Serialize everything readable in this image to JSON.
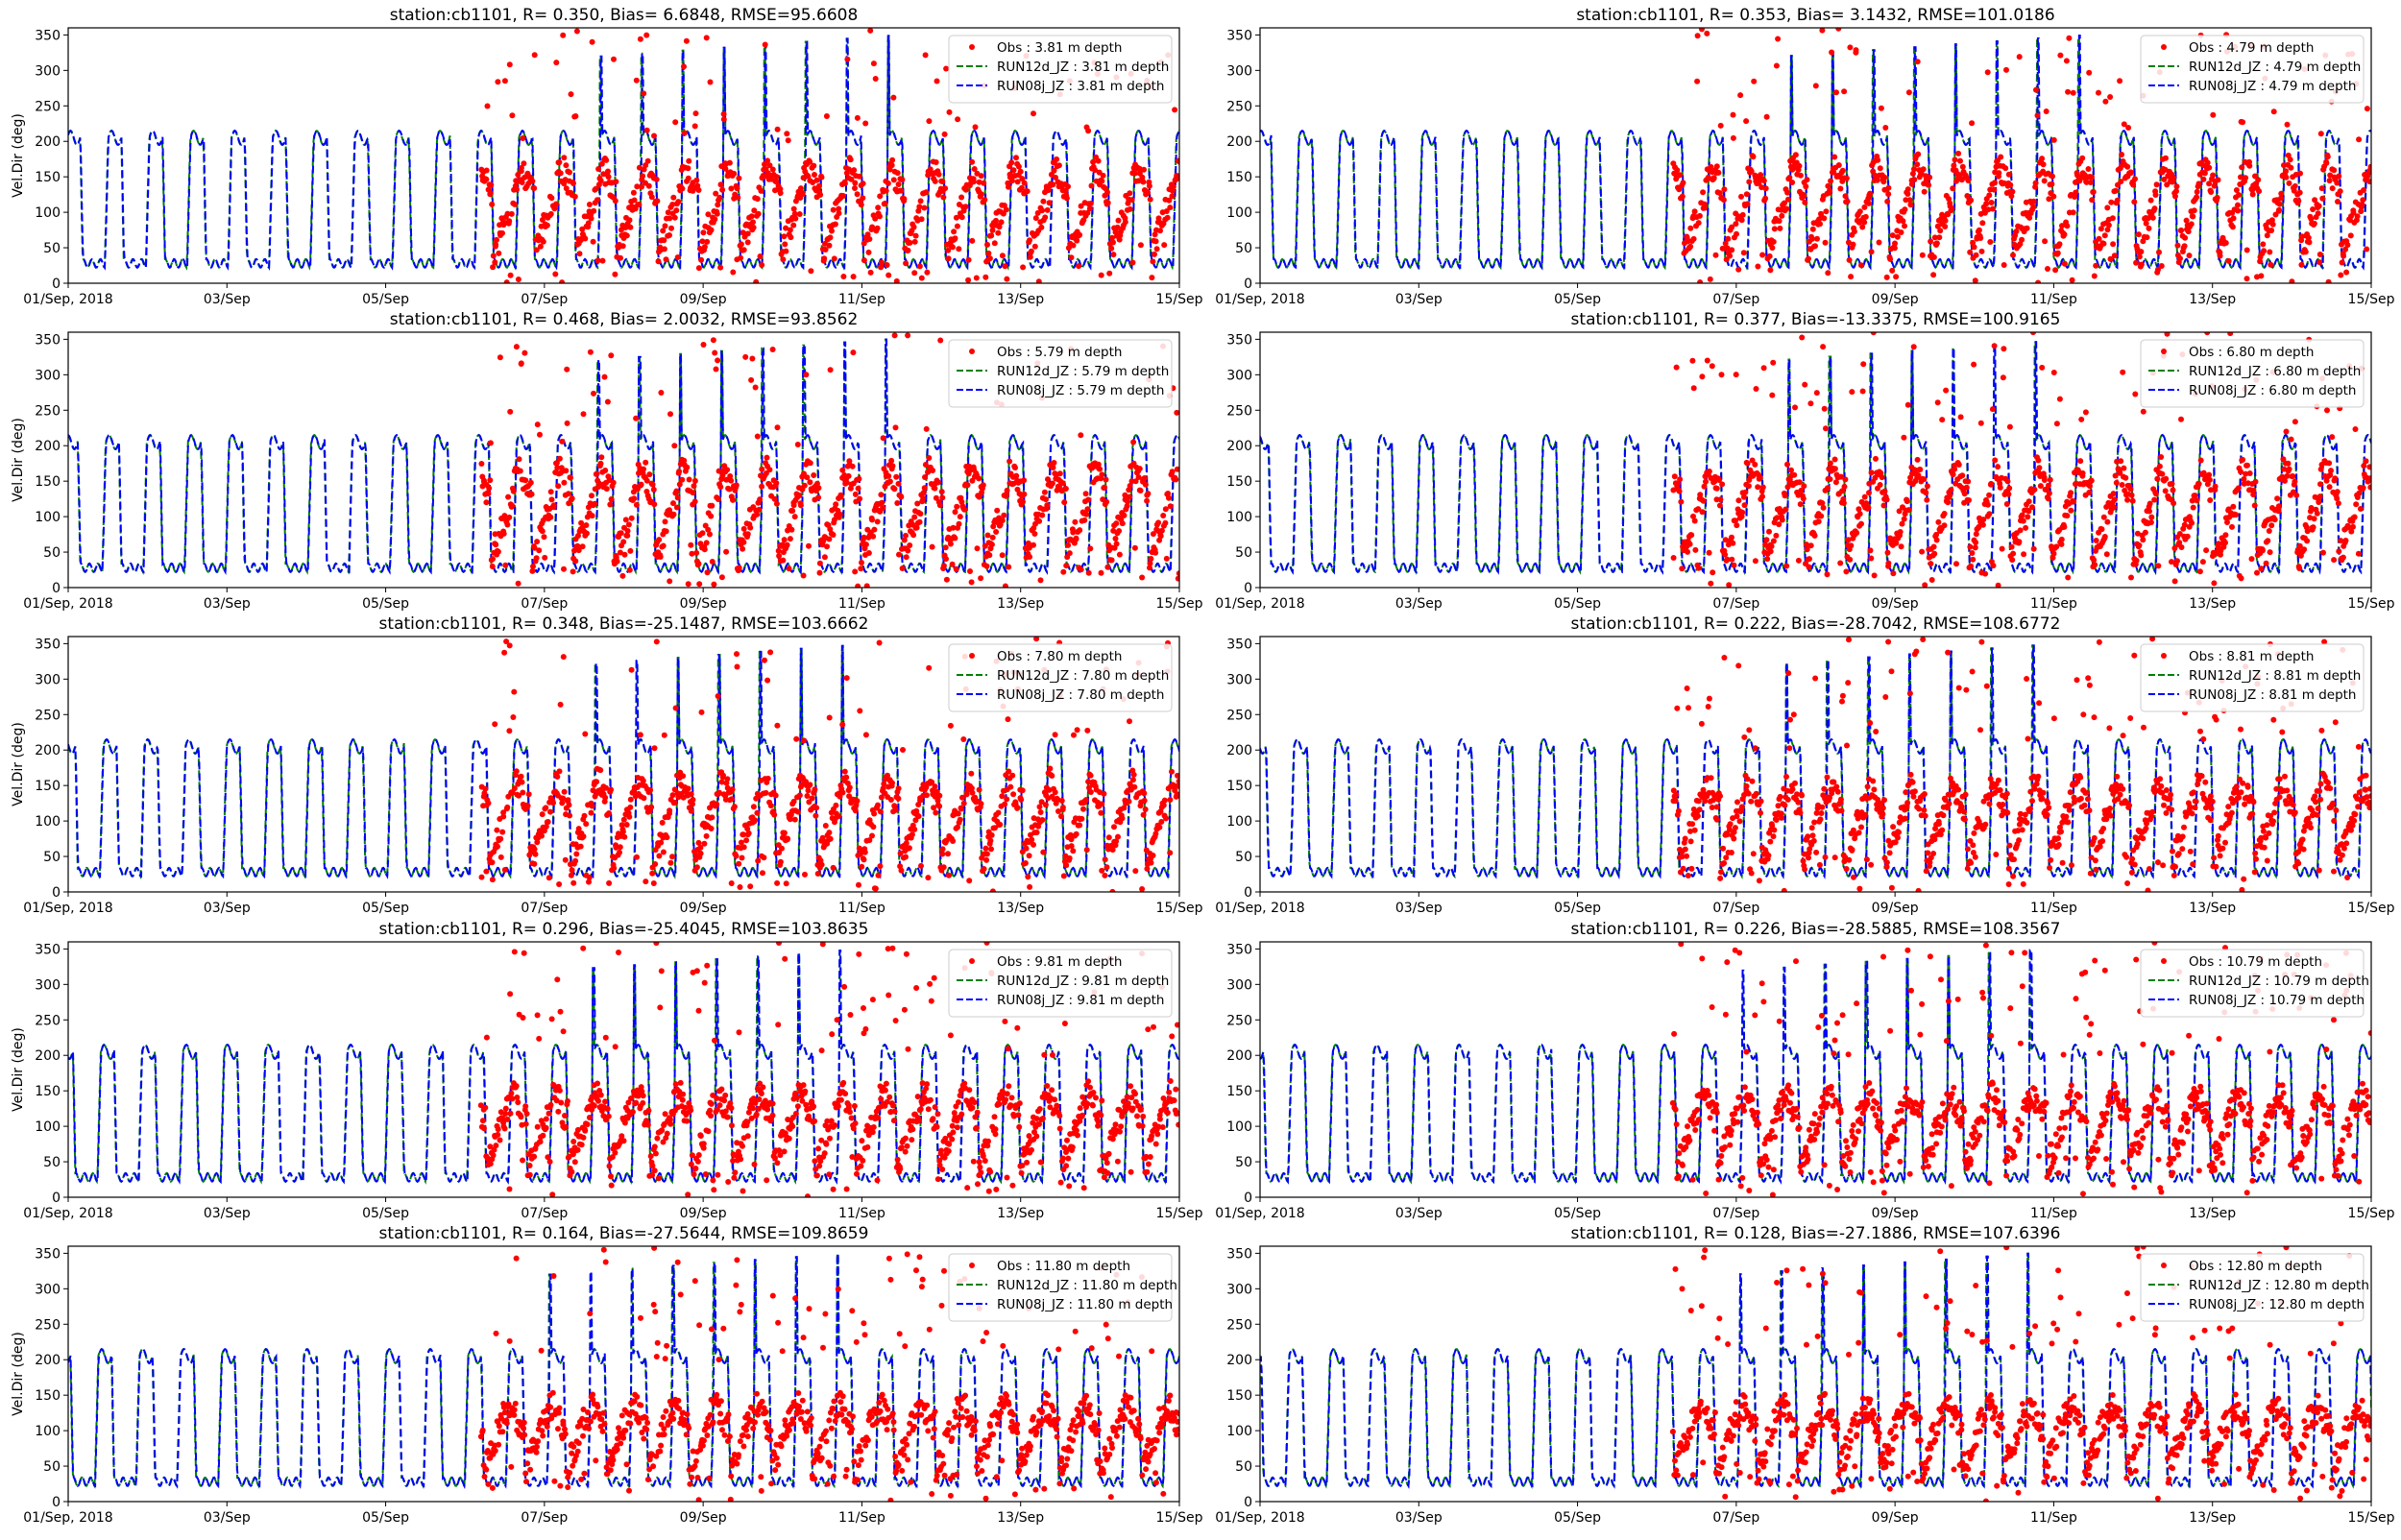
{
  "figure": {
    "panels": 10,
    "layout": "5 rows x 2 columns"
  },
  "colors": {
    "obs": "#ff0000",
    "run12d": "#008000",
    "run08j": "#0000ff",
    "axis": "#000000"
  },
  "chart_data": [
    {
      "type": "scatter",
      "title": "station:cb1101, R= 0.350, Bias= 6.6848, RMSE=95.6608",
      "ylabel": "Vel.Dir (deg)",
      "xlabel": "",
      "xlim": [
        0,
        14
      ],
      "ylim": [
        0,
        360
      ],
      "xtick_labels": [
        "01/Sep, 2018",
        "03/Sep",
        "05/Sep",
        "07/Sep",
        "09/Sep",
        "11/Sep",
        "13/Sep",
        "15/Sep"
      ],
      "ytick_labels": [
        "0",
        "50",
        "100",
        "150",
        "200",
        "250",
        "300",
        "350"
      ],
      "legend_position": "upper-right",
      "legend": [
        "Obs : 3.81 m depth",
        "RUN12d_JZ : 3.81 m depth",
        "RUN08j_JZ : 3.81 m depth"
      ],
      "obs_start_day": 5.2,
      "obs_center": 145,
      "model_depth_m": 3.81
    },
    {
      "type": "scatter",
      "title": "station:cb1101, R= 0.353, Bias= 3.1432, RMSE=101.0186",
      "ylabel": "",
      "xlabel": "",
      "xlim": [
        0,
        14
      ],
      "ylim": [
        0,
        360
      ],
      "xtick_labels": [
        "01/Sep, 2018",
        "03/Sep",
        "05/Sep",
        "07/Sep",
        "09/Sep",
        "11/Sep",
        "13/Sep",
        "15/Sep"
      ],
      "ytick_labels": [
        "0",
        "50",
        "100",
        "150",
        "200",
        "250",
        "300",
        "350"
      ],
      "legend_position": "upper-right",
      "legend": [
        "Obs : 4.79 m depth",
        "RUN12d_JZ : 4.79 m depth",
        "RUN08j_JZ : 4.79 m depth"
      ],
      "obs_start_day": 5.2,
      "obs_center": 148,
      "model_depth_m": 4.79
    },
    {
      "type": "scatter",
      "title": "station:cb1101, R= 0.468, Bias= 2.0032, RMSE=93.8562",
      "ylabel": "Vel.Dir (deg)",
      "xlabel": "",
      "xlim": [
        0,
        14
      ],
      "ylim": [
        0,
        360
      ],
      "xtick_labels": [
        "01/Sep, 2018",
        "03/Sep",
        "05/Sep",
        "07/Sep",
        "09/Sep",
        "11/Sep",
        "13/Sep",
        "15/Sep"
      ],
      "ytick_labels": [
        "0",
        "50",
        "100",
        "150",
        "200",
        "250",
        "300",
        "350"
      ],
      "legend_position": "upper-right",
      "legend": [
        "Obs : 5.79 m depth",
        "RUN12d_JZ : 5.79 m depth",
        "RUN08j_JZ : 5.79 m depth"
      ],
      "obs_start_day": 5.2,
      "obs_center": 150,
      "model_depth_m": 5.79
    },
    {
      "type": "scatter",
      "title": "station:cb1101, R= 0.377, Bias=-13.3375, RMSE=100.9165",
      "ylabel": "",
      "xlabel": "",
      "xlim": [
        0,
        14
      ],
      "ylim": [
        0,
        360
      ],
      "xtick_labels": [
        "01/Sep, 2018",
        "03/Sep",
        "05/Sep",
        "07/Sep",
        "09/Sep",
        "11/Sep",
        "13/Sep",
        "15/Sep"
      ],
      "ytick_labels": [
        "0",
        "50",
        "100",
        "150",
        "200",
        "250",
        "300",
        "350"
      ],
      "legend_position": "upper-right",
      "legend": [
        "Obs : 6.80 m depth",
        "RUN12d_JZ : 6.80 m depth",
        "RUN08j_JZ : 6.80 m depth"
      ],
      "obs_start_day": 5.2,
      "obs_center": 150,
      "model_depth_m": 6.8
    },
    {
      "type": "scatter",
      "title": "station:cb1101, R= 0.348, Bias=-25.1487, RMSE=103.6662",
      "ylabel": "Vel.Dir (deg)",
      "xlabel": "",
      "xlim": [
        0,
        14
      ],
      "ylim": [
        0,
        360
      ],
      "xtick_labels": [
        "01/Sep, 2018",
        "03/Sep",
        "05/Sep",
        "07/Sep",
        "09/Sep",
        "11/Sep",
        "13/Sep",
        "15/Sep"
      ],
      "ytick_labels": [
        "0",
        "50",
        "100",
        "150",
        "200",
        "250",
        "300",
        "350"
      ],
      "legend_position": "upper-right",
      "legend": [
        "Obs : 7.80 m depth",
        "RUN12d_JZ : 7.80 m depth",
        "RUN08j_JZ : 7.80 m depth"
      ],
      "obs_start_day": 5.2,
      "obs_center": 140,
      "model_depth_m": 7.8
    },
    {
      "type": "scatter",
      "title": "station:cb1101, R= 0.222, Bias=-28.7042, RMSE=108.6772",
      "ylabel": "",
      "xlabel": "",
      "xlim": [
        0,
        14
      ],
      "ylim": [
        0,
        360
      ],
      "xtick_labels": [
        "01/Sep, 2018",
        "03/Sep",
        "05/Sep",
        "07/Sep",
        "09/Sep",
        "11/Sep",
        "13/Sep",
        "15/Sep"
      ],
      "ytick_labels": [
        "0",
        "50",
        "100",
        "150",
        "200",
        "250",
        "300",
        "350"
      ],
      "legend_position": "upper-right",
      "legend": [
        "Obs : 8.81 m depth",
        "RUN12d_JZ : 8.81 m depth",
        "RUN08j_JZ : 8.81 m depth"
      ],
      "obs_start_day": 5.2,
      "obs_center": 135,
      "model_depth_m": 8.81
    },
    {
      "type": "scatter",
      "title": "station:cb1101, R= 0.296, Bias=-25.4045, RMSE=103.8635",
      "ylabel": "Vel.Dir (deg)",
      "xlabel": "",
      "xlim": [
        0,
        14
      ],
      "ylim": [
        0,
        360
      ],
      "xtick_labels": [
        "01/Sep, 2018",
        "03/Sep",
        "05/Sep",
        "07/Sep",
        "09/Sep",
        "11/Sep",
        "13/Sep",
        "15/Sep"
      ],
      "ytick_labels": [
        "0",
        "50",
        "100",
        "150",
        "200",
        "250",
        "300",
        "350"
      ],
      "legend_position": "upper-right",
      "legend": [
        "Obs : 9.81 m depth",
        "RUN12d_JZ : 9.81 m depth",
        "RUN08j_JZ : 9.81 m depth"
      ],
      "obs_start_day": 5.2,
      "obs_center": 130,
      "model_depth_m": 9.81
    },
    {
      "type": "scatter",
      "title": "station:cb1101, R= 0.226, Bias=-28.5885, RMSE=108.3567",
      "ylabel": "",
      "xlabel": "",
      "xlim": [
        0,
        14
      ],
      "ylim": [
        0,
        360
      ],
      "xtick_labels": [
        "01/Sep, 2018",
        "03/Sep",
        "05/Sep",
        "07/Sep",
        "09/Sep",
        "11/Sep",
        "13/Sep",
        "15/Sep"
      ],
      "ytick_labels": [
        "0",
        "50",
        "100",
        "150",
        "200",
        "250",
        "300",
        "350"
      ],
      "legend_position": "upper-right",
      "legend": [
        "Obs : 10.79 m depth",
        "RUN12d_JZ : 10.79 m depth",
        "RUN08j_JZ : 10.79 m depth"
      ],
      "obs_start_day": 5.2,
      "obs_center": 128,
      "model_depth_m": 10.79
    },
    {
      "type": "scatter",
      "title": "station:cb1101, R= 0.164, Bias=-27.5644, RMSE=109.8659",
      "ylabel": "Vel.Dir (deg)",
      "xlabel": "",
      "xlim": [
        0,
        14
      ],
      "ylim": [
        0,
        360
      ],
      "xtick_labels": [
        "01/Sep, 2018",
        "03/Sep",
        "05/Sep",
        "07/Sep",
        "09/Sep",
        "11/Sep",
        "13/Sep",
        "15/Sep"
      ],
      "ytick_labels": [
        "0",
        "50",
        "100",
        "150",
        "200",
        "250",
        "300",
        "350"
      ],
      "legend_position": "upper-right",
      "legend": [
        "Obs : 11.80 m depth",
        "RUN12d_JZ : 11.80 m depth",
        "RUN08j_JZ : 11.80 m depth"
      ],
      "obs_start_day": 5.2,
      "obs_center": 120,
      "model_depth_m": 11.8
    },
    {
      "type": "scatter",
      "title": "station:cb1101, R= 0.128, Bias=-27.1886, RMSE=107.6396",
      "ylabel": "",
      "xlabel": "",
      "xlim": [
        0,
        14
      ],
      "ylim": [
        0,
        360
      ],
      "xtick_labels": [
        "01/Sep, 2018",
        "03/Sep",
        "05/Sep",
        "07/Sep",
        "09/Sep",
        "11/Sep",
        "13/Sep",
        "15/Sep"
      ],
      "ytick_labels": [
        "0",
        "50",
        "100",
        "150",
        "200",
        "250",
        "300",
        "350"
      ],
      "legend_position": "upper-right",
      "legend": [
        "Obs : 12.80 m depth",
        "RUN12d_JZ : 12.80 m depth",
        "RUN08j_JZ : 12.80 m depth"
      ],
      "obs_start_day": 5.2,
      "obs_center": 118,
      "model_depth_m": 12.8
    }
  ]
}
